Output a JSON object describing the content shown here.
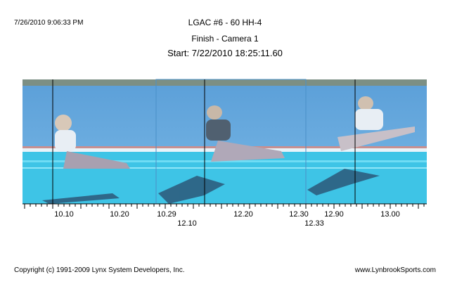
{
  "header": {
    "timestamp": "7/26/2010 9:06:33 PM",
    "title": "LGAC #6 - 60 HH-4",
    "subtitle": "Finish - Camera 1",
    "start": "Start: 7/22/2010 18:25:11.60"
  },
  "time_axis": {
    "labels": [
      "10.10",
      "10.20",
      "10.29",
      "12.10",
      "12.20",
      "12.30",
      "12.33",
      "12.90",
      "13.00"
    ]
  },
  "footer": {
    "copyright": "Copyright (c) 1991-2009 Lynx System Developers, Inc.",
    "website": "www.LynbrookSports.com"
  }
}
